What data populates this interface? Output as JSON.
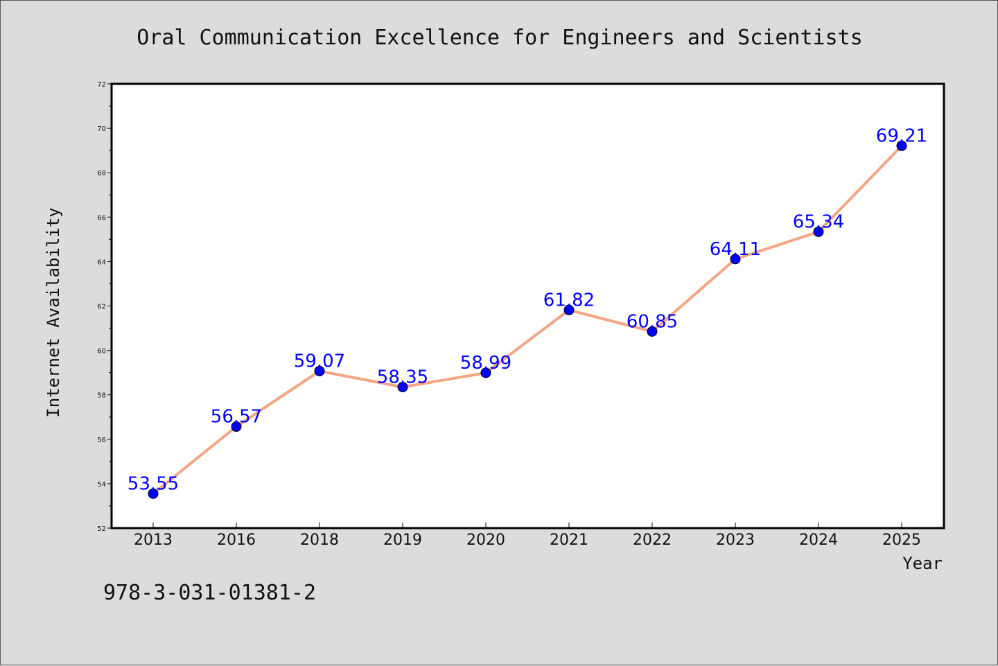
{
  "chart_data": {
    "type": "line",
    "title": "Oral Communication Excellence for Engineers and Scientists",
    "xlabel": "Year",
    "ylabel": "Internet Availability",
    "categories": [
      "2013",
      "2016",
      "2018",
      "2019",
      "2020",
      "2021",
      "2022",
      "2023",
      "2024",
      "2025"
    ],
    "series": [
      {
        "values": [
          53.55,
          56.57,
          59.07,
          58.35,
          58.99,
          61.82,
          60.85,
          64.11,
          65.34,
          69.21
        ],
        "value_labels": [
          "53.55",
          "56.57",
          "59.07",
          "58.35",
          "58.99",
          "61.82",
          "60.85",
          "64.11",
          "65.34",
          "69.21"
        ],
        "line_color": "#f4a582",
        "marker_color": "#0000ff"
      }
    ],
    "ylim": [
      52,
      72
    ],
    "yticks": [
      "52",
      "54",
      "56",
      "58",
      "60",
      "62",
      "64",
      "66",
      "68",
      "70",
      "72"
    ],
    "grid": false,
    "legend": "none"
  },
  "annotation": "978-3-031-01381-2",
  "colors": {
    "background": "#dcdcdc",
    "plot_background": "#ffffff",
    "label_color": "#0000ff"
  }
}
